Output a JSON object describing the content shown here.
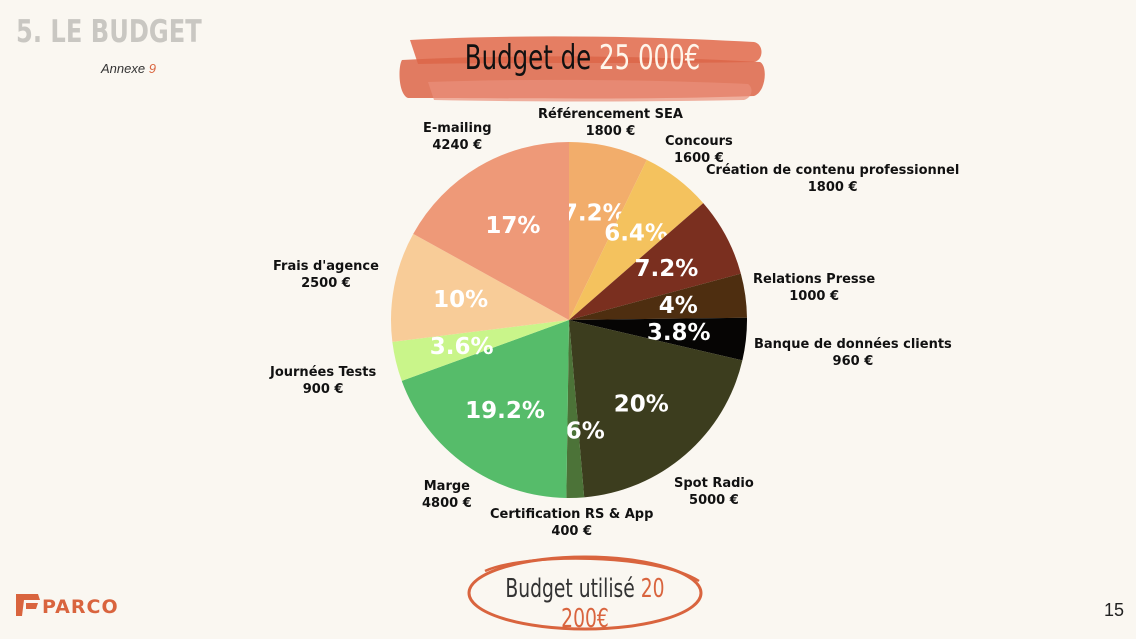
{
  "header": {
    "section_title": "5. LE BUDGET",
    "annexe_label": "Annexe",
    "annexe_number": "9"
  },
  "banner": {
    "prefix": "Budget de",
    "amount": "25 000€"
  },
  "used": {
    "prefix": "Budget utilisé",
    "amount": "20 200€"
  },
  "logo": {
    "text": "PARCO",
    "icon": "parco-logo-icon"
  },
  "page_number": "15",
  "colors": {
    "accent": "#d9643e"
  },
  "chart_data": {
    "type": "pie",
    "slices": [
      {
        "name": "Référencement SEA",
        "value": 1800,
        "value_label": "1800 €",
        "percent_label": "7.2%",
        "color": "#f2ad6b"
      },
      {
        "name": "Concours",
        "value": 1600,
        "value_label": "1600 €",
        "percent_label": "6.4%",
        "color": "#f4c25e"
      },
      {
        "name": "Création de contenu professionnel",
        "value": 1800,
        "value_label": "1800 €",
        "percent_label": "7.2%",
        "color": "#7a2f1f"
      },
      {
        "name": "Relations Presse",
        "value": 1000,
        "value_label": "1000 €",
        "percent_label": "4%",
        "color": "#4e2e10"
      },
      {
        "name": "Banque de données clients",
        "value": 960,
        "value_label": "960 €",
        "percent_label": "3.8%",
        "color": "#060504"
      },
      {
        "name": "Spot Radio",
        "value": 5000,
        "value_label": "5000 €",
        "percent_label": "20%",
        "color": "#3c3d1e"
      },
      {
        "name": "Certification RS & App",
        "value": 400,
        "value_label": "400 €",
        "percent_label": "1.6%",
        "color": "#4c7338"
      },
      {
        "name": "Marge",
        "value": 4800,
        "value_label": "4800 €",
        "percent_label": "19.2%",
        "color": "#56bc6a"
      },
      {
        "name": "Journées Tests",
        "value": 900,
        "value_label": "900 €",
        "percent_label": "3.6%",
        "color": "#c9f58a"
      },
      {
        "name": "Frais d'agence",
        "value": 2500,
        "value_label": "2500 €",
        "percent_label": "10%",
        "color": "#f8cc98"
      },
      {
        "name": "E-mailing",
        "value": 4240,
        "value_label": "4240 €",
        "percent_label": "17%",
        "color": "#ee9978"
      }
    ]
  }
}
